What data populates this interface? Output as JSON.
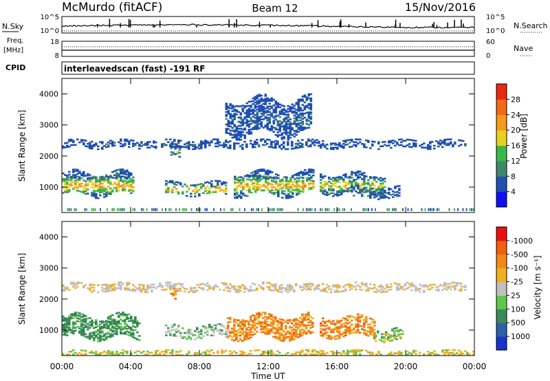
{
  "header": {
    "station": "McMurdo (fitACF)",
    "beam": "Beam 12",
    "date": "15/Nov/2016"
  },
  "top_panels": {
    "nsky_label": "N.Sky",
    "nsky_ticks": [
      "10^5",
      "10^0"
    ],
    "nsearch_label": "N.Search",
    "nsearch_ticks": [
      "10^5",
      "10^0"
    ],
    "freq_label_1": "Freq.",
    "freq_label_2": "[MHz]",
    "freq_ticks": [
      "18",
      "8"
    ],
    "nave_label": "Nave",
    "nave_ticks": [
      "60",
      "0"
    ],
    "cpid_label": "CPID",
    "cpid_text": "interleavedscan (fast) -191 RF"
  },
  "chart_data": [
    {
      "type": "heatmap",
      "panel": "power",
      "ylabel": "Slant Range [km]",
      "ylim": [
        180,
        4500
      ],
      "yticks": [
        "1000",
        "2000",
        "3000",
        "4000"
      ],
      "xlabel": "",
      "colorbar_label": "Power [dB]",
      "colorbar_ticks": [
        "4",
        "8",
        "12",
        "16",
        "20",
        "24",
        "28"
      ],
      "colorbar_colors": [
        "#1010f0",
        "#2050b0",
        "#40886a",
        "#3cb84a",
        "#e8d020",
        "#f29a1c",
        "#f06a1a",
        "#e82a10"
      ],
      "regions": [
        {
          "x": [
            0.0,
            4.2
          ],
          "y": [
            750,
            1450
          ],
          "level": 5
        },
        {
          "x": [
            6.0,
            9.5
          ],
          "y": [
            750,
            1150
          ],
          "level": 5
        },
        {
          "x": [
            10.0,
            14.6
          ],
          "y": [
            750,
            1450
          ],
          "level": 5
        },
        {
          "x": [
            15.0,
            18.8
          ],
          "y": [
            800,
            1400
          ],
          "level": 4
        },
        {
          "x": [
            16.8,
            19.6
          ],
          "y": [
            650,
            1000
          ],
          "level": 2
        },
        {
          "x": [
            6.3,
            6.9
          ],
          "y": [
            1950,
            2350
          ],
          "level": 3
        },
        {
          "x": [
            0.0,
            23.5
          ],
          "y": [
            2250,
            2500
          ],
          "level": 1
        },
        {
          "x": [
            9.5,
            14.5
          ],
          "y": [
            2700,
            3800
          ],
          "level": 1
        }
      ]
    },
    {
      "type": "heatmap",
      "panel": "velocity",
      "ylabel": "Slant Range [km]",
      "ylim": [
        180,
        4500
      ],
      "yticks": [
        "1000",
        "2000",
        "3000",
        "4000"
      ],
      "xlabel": "Time UT",
      "xticks": [
        "00:00",
        "04:00",
        "08:00",
        "12:00",
        "16:00",
        "20:00",
        "00:00"
      ],
      "xlim_hours": [
        0,
        24
      ],
      "colorbar_label": "Velocity [m s⁻¹]",
      "colorbar_ticks": [
        "1000",
        "500",
        "100",
        "25",
        "-25",
        "-100",
        "-500",
        "-1000"
      ],
      "colorbar_colors": [
        "#1a34c8",
        "#2e60a8",
        "#3c8a5a",
        "#5cc84a",
        "#c0c0c0",
        "#f2b020",
        "#f08a1a",
        "#f06010",
        "#e81010"
      ],
      "regions": [
        {
          "x": [
            0.0,
            4.5
          ],
          "y": [
            750,
            1450
          ],
          "level": "green-dark"
        },
        {
          "x": [
            6.0,
            9.6
          ],
          "y": [
            750,
            1150
          ],
          "level": "gray-green"
        },
        {
          "x": [
            9.6,
            14.6
          ],
          "y": [
            750,
            1450
          ],
          "level": "orange"
        },
        {
          "x": [
            15.0,
            18.2
          ],
          "y": [
            800,
            1400
          ],
          "level": "orange"
        },
        {
          "x": [
            18.2,
            19.8
          ],
          "y": [
            650,
            1050
          ],
          "level": "light-green"
        },
        {
          "x": [
            6.3,
            6.9
          ],
          "y": [
            1950,
            2350
          ],
          "level": "orange"
        },
        {
          "x": [
            0.0,
            23.5
          ],
          "y": [
            2250,
            2500
          ],
          "level": "gray"
        },
        {
          "x": [
            0.0,
            24.0
          ],
          "y": [
            180,
            320
          ],
          "level": "yellow"
        }
      ]
    }
  ]
}
